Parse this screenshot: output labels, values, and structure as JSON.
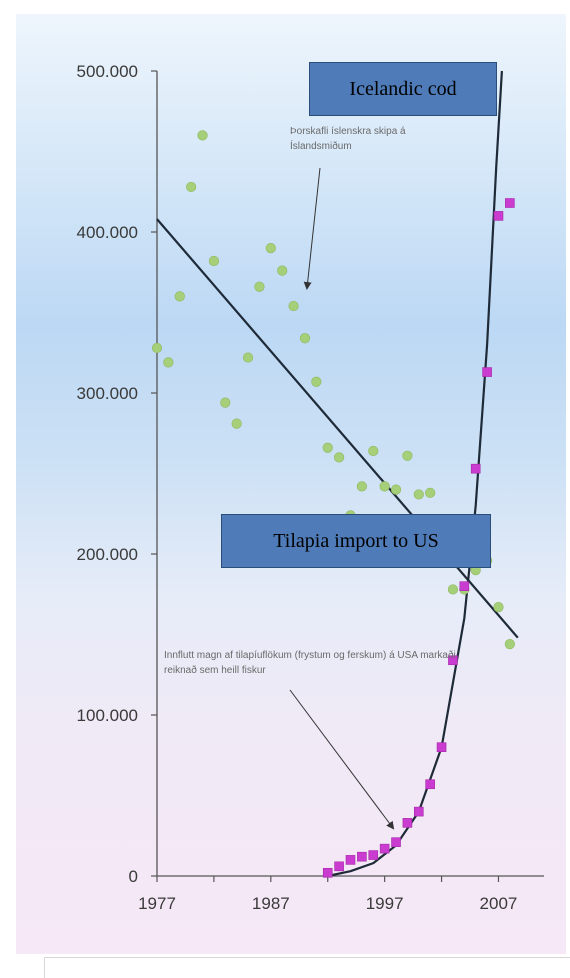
{
  "chart_data": {
    "type": "scatter",
    "xlim": [
      1977,
      2011
    ],
    "ylim": [
      0,
      500000
    ],
    "x_ticks": [
      1977,
      1987,
      1997,
      2007
    ],
    "y_tick_values": [
      0,
      100000,
      200000,
      300000,
      400000,
      500000
    ],
    "y_tick_labels": [
      "0",
      "100.000",
      "200.000",
      "300.000",
      "400.000",
      "500.000"
    ],
    "grid": false,
    "series": [
      {
        "name": "Icelandic cod",
        "color": "#a6cf79",
        "marker": "circle",
        "points": [
          [
            1977,
            328000
          ],
          [
            1978,
            319000
          ],
          [
            1979,
            360000
          ],
          [
            1980,
            428000
          ],
          [
            1981,
            460000
          ],
          [
            1982,
            382000
          ],
          [
            1983,
            294000
          ],
          [
            1984,
            281000
          ],
          [
            1985,
            322000
          ],
          [
            1986,
            366000
          ],
          [
            1987,
            390000
          ],
          [
            1988,
            376000
          ],
          [
            1989,
            354000
          ],
          [
            1990,
            334000
          ],
          [
            1991,
            307000
          ],
          [
            1992,
            266000
          ],
          [
            1993,
            260000
          ],
          [
            1994,
            224000
          ],
          [
            1995,
            242000
          ],
          [
            1996,
            264000
          ],
          [
            1997,
            242000
          ],
          [
            1998,
            240000
          ],
          [
            1999,
            261000
          ],
          [
            2000,
            237000
          ],
          [
            2001,
            238000
          ],
          [
            2002,
            204000
          ],
          [
            2003,
            178000
          ],
          [
            2004,
            178000
          ],
          [
            2005,
            190000
          ],
          [
            2006,
            196000
          ],
          [
            2007,
            167000
          ],
          [
            2008,
            144000
          ]
        ],
        "trendline": [
          [
            1977,
            408000
          ],
          [
            2008.7,
            148000
          ]
        ]
      },
      {
        "name": "Tilapia import to US",
        "color": "#c93ccf",
        "marker": "square",
        "points": [
          [
            1992,
            2000
          ],
          [
            1993,
            6000
          ],
          [
            1994,
            10000
          ],
          [
            1995,
            12000
          ],
          [
            1996,
            13000
          ],
          [
            1997,
            17000
          ],
          [
            1998,
            21000
          ],
          [
            1999,
            33000
          ],
          [
            2000,
            40000
          ],
          [
            2001,
            57000
          ],
          [
            2002,
            80000
          ],
          [
            2003,
            134000
          ],
          [
            2004,
            180000
          ],
          [
            2005,
            253000
          ],
          [
            2006,
            313000
          ],
          [
            2007,
            410000
          ],
          [
            2008,
            418000
          ]
        ],
        "trendline": [
          [
            1992,
            0
          ],
          [
            1994,
            3000
          ],
          [
            1996,
            8000
          ],
          [
            1998,
            19000
          ],
          [
            2000,
            40000
          ],
          [
            2002,
            80000
          ],
          [
            2004,
            160000
          ],
          [
            2005,
            230000
          ],
          [
            2006,
            330000
          ],
          [
            2006.8,
            440000
          ],
          [
            2007.3,
            500000
          ]
        ]
      }
    ],
    "callouts": {
      "cod": "Icelandic cod",
      "tilapia": "Tilapia import to US"
    },
    "annotations": {
      "cod_note": "Þorskafli íslenskra skipa á Íslandsmiðum",
      "tilapia_note": "Innflutt magn af tilapíuflökum (frystum og ferskum) á USA markaði reiknað sem heill fiskur"
    }
  }
}
